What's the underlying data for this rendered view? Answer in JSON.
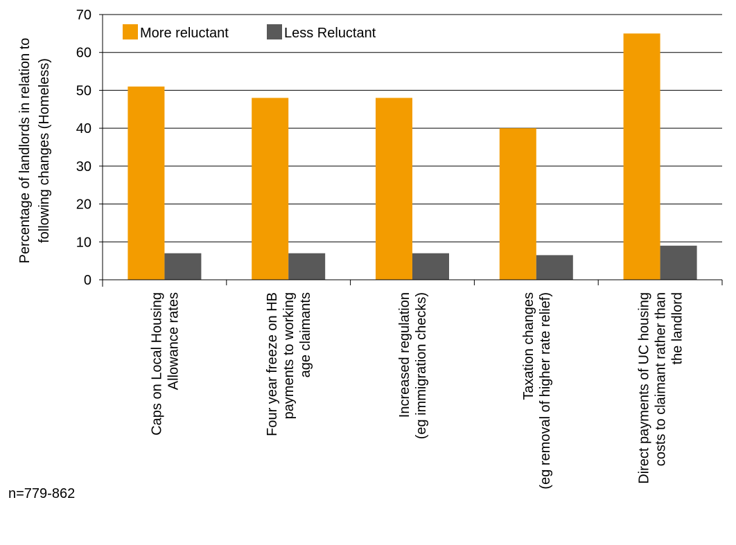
{
  "chart_data": {
    "type": "bar",
    "title": "",
    "xlabel": "",
    "ylabel_lines": [
      "Percentage of landlords in relation to",
      "following changes (Homeless)"
    ],
    "ylim": [
      0,
      70
    ],
    "yticks": [
      0,
      10,
      20,
      30,
      40,
      50,
      60,
      70
    ],
    "grid": true,
    "legend_position": "top-left",
    "categories": [
      [
        "Caps on Local Housing",
        "Allowance rates"
      ],
      [
        "Four year freeze on HB",
        "payments to working",
        "age claimants"
      ],
      [
        "Increased regulation",
        "(eg immigration checks)"
      ],
      [
        "Taxation changes",
        "(eg removal of higher rate relief)"
      ],
      [
        "Direct payments of UC housing",
        "costs to claimant rather than",
        "the landlord"
      ]
    ],
    "series": [
      {
        "name": "More reluctant",
        "color": "#f39c00",
        "values": [
          51,
          48,
          48,
          40,
          65
        ]
      },
      {
        "name": "Less Reluctant",
        "color": "#595959",
        "values": [
          7,
          7,
          7,
          6.5,
          9
        ]
      }
    ]
  },
  "note": "n=779-862"
}
